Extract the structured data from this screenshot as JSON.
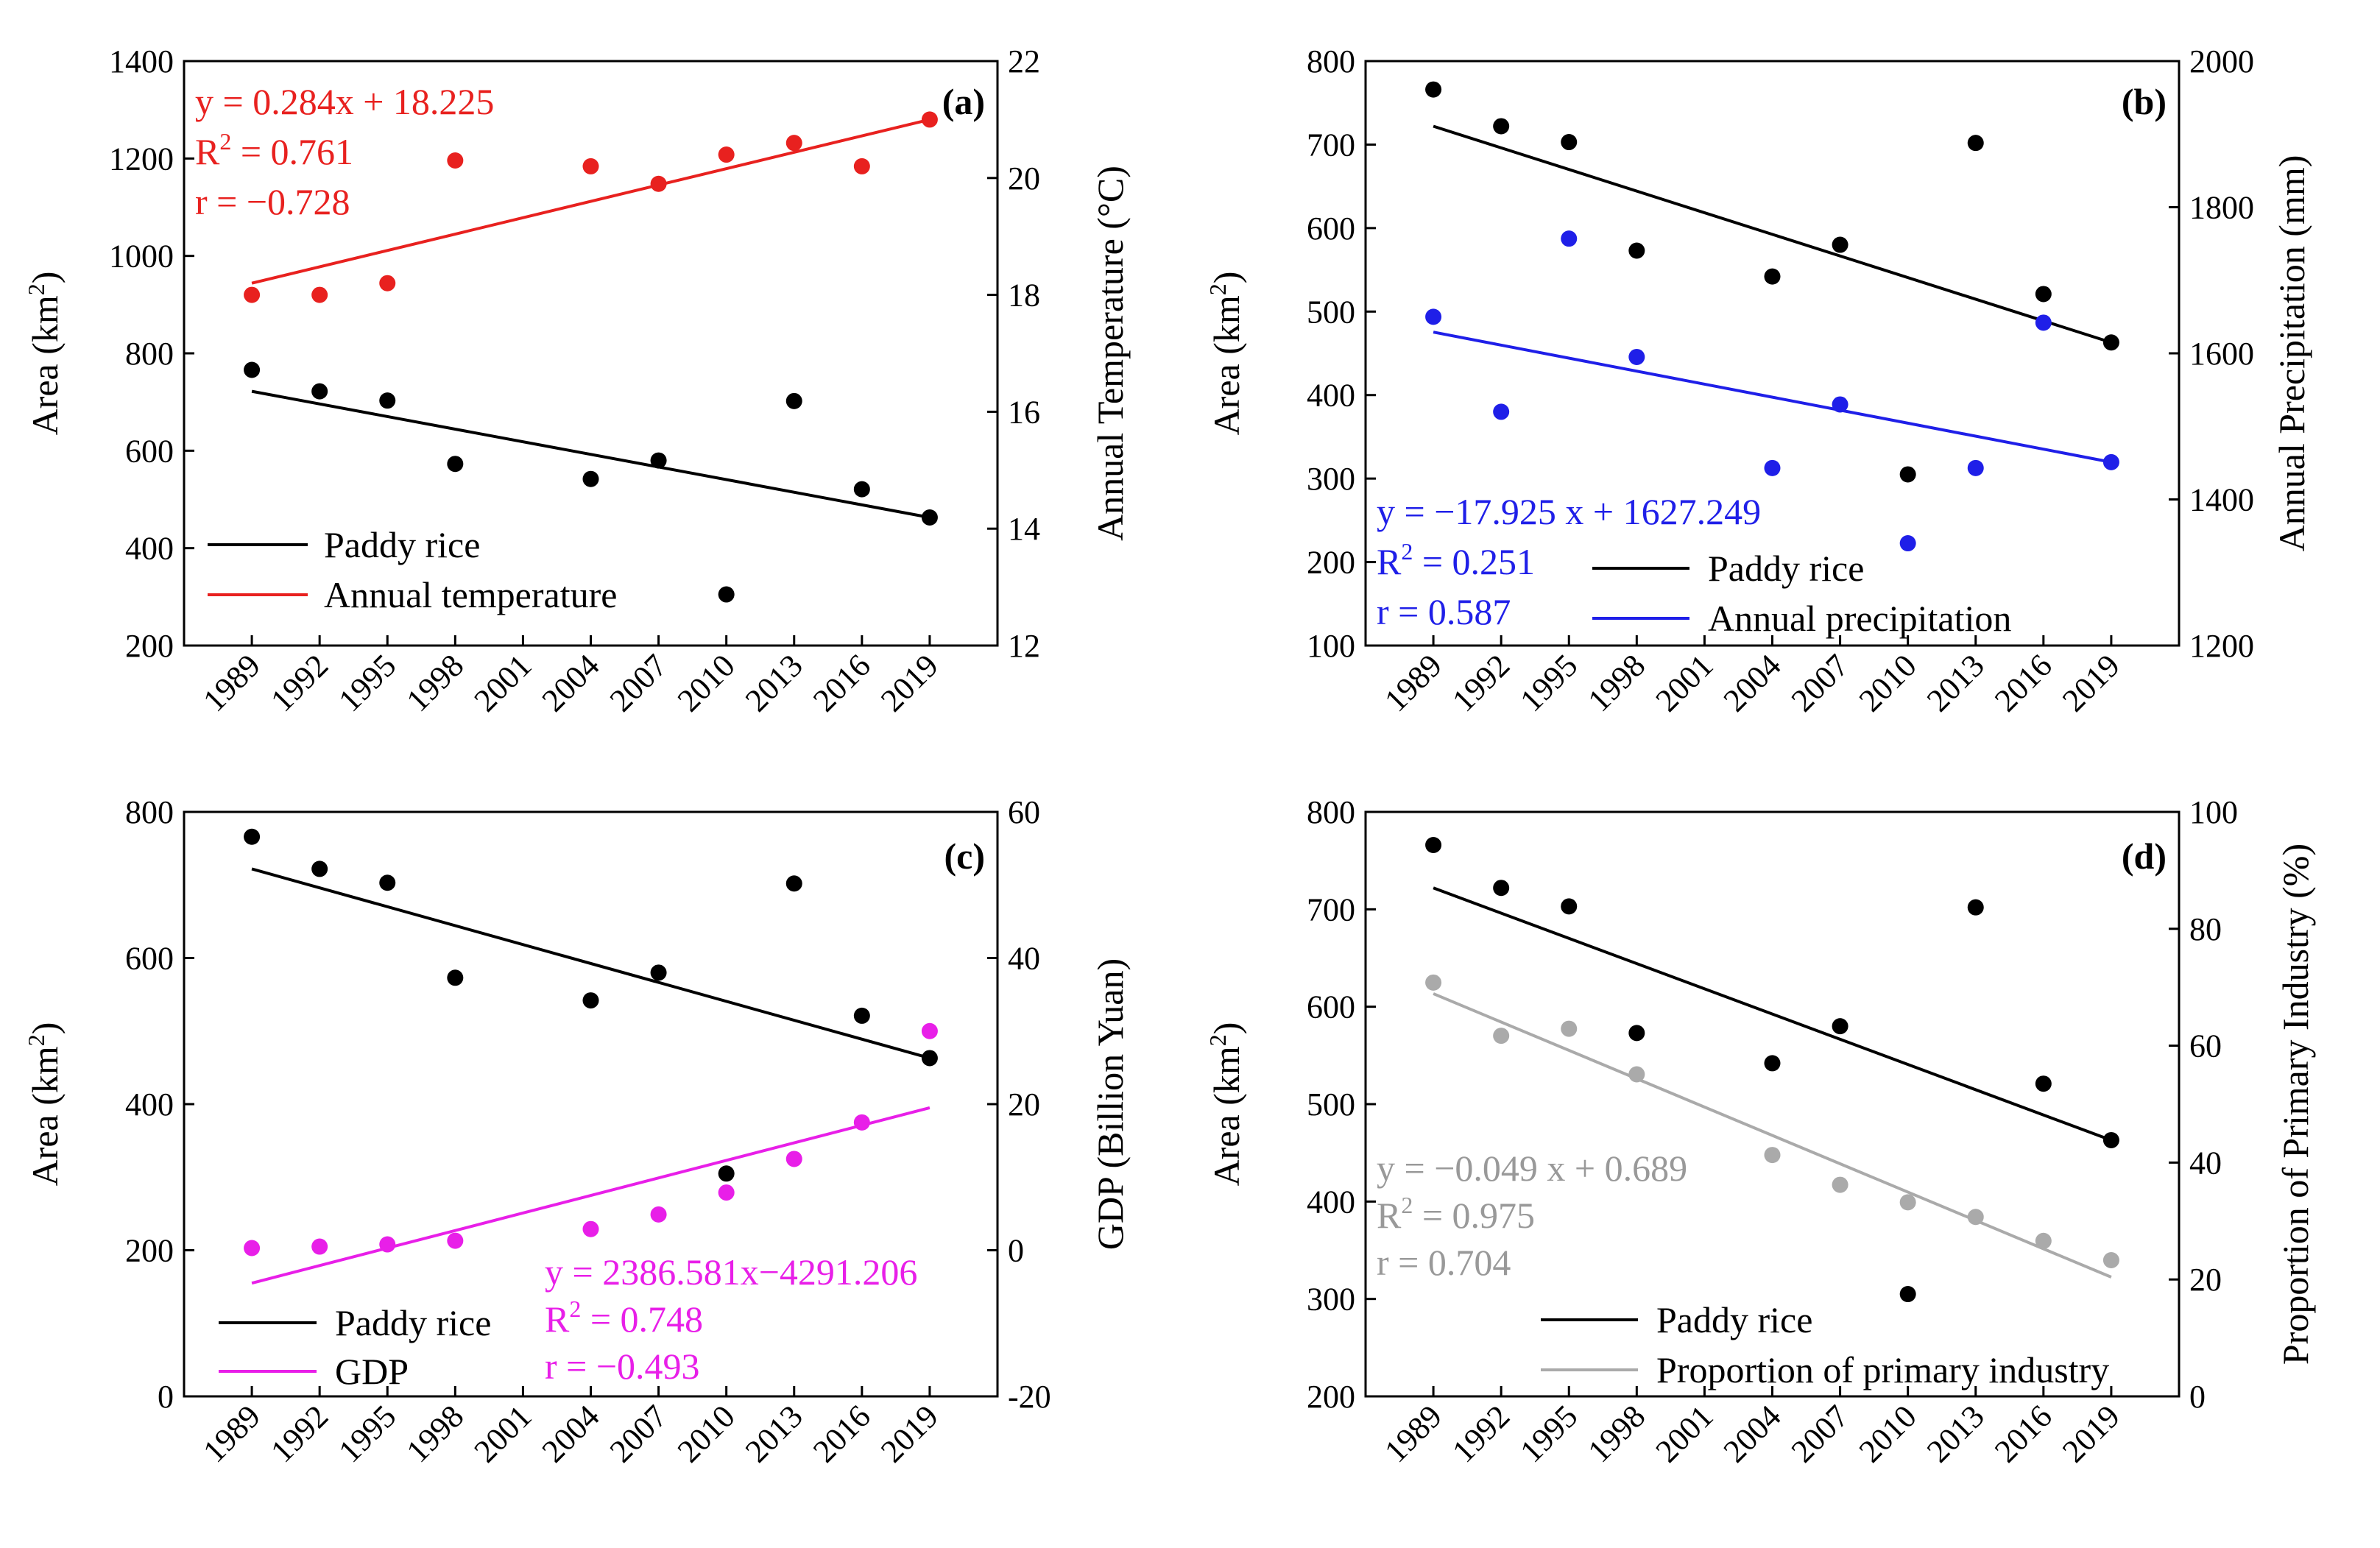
{
  "chart_data": [
    {
      "panel": "(a)",
      "type": "scatter",
      "x": [
        1989,
        1992,
        1995,
        1998,
        2004,
        2007,
        2010,
        2013,
        2016,
        2019
      ],
      "categories": [
        "1989",
        "1992",
        "1995",
        "1998",
        "2001",
        "2004",
        "2007",
        "2010",
        "2013",
        "2016",
        "2019"
      ],
      "ylabel": "Area (km²)",
      "ylabel_main": "Area (km",
      "ylabel_sup": "2",
      "ylabel_end": ")",
      "ylim": [
        200,
        1400
      ],
      "yticks": [
        200,
        400,
        600,
        800,
        1000,
        1200,
        1400
      ],
      "y2label": "Annual Temperature (°C)",
      "y2lim": [
        12,
        22
      ],
      "y2ticks": [
        12,
        14,
        16,
        18,
        20,
        22
      ],
      "series": [
        {
          "name": "Paddy rice",
          "axis": "left",
          "color": "#000000",
          "values": [
            766,
            722,
            703,
            573,
            542,
            580,
            305,
            702,
            521,
            463
          ],
          "fit": [
            722,
            463
          ]
        },
        {
          "name": "Annual temperature",
          "axis": "right",
          "color": "#e8211f",
          "values": [
            18.0,
            18.0,
            18.2,
            20.3,
            20.2,
            19.9,
            20.4,
            20.6,
            20.2,
            21.0
          ],
          "fit": [
            18.2,
            21.0
          ]
        }
      ],
      "annotation": {
        "color": "#e8211f",
        "eq": "y = 0.284x + 18.225",
        "r2_main": "R",
        "r2_sup": "2",
        "r2_rest": " = 0.761",
        "r": "r = −0.728"
      },
      "legend": [
        "Paddy rice",
        "Annual temperature"
      ]
    },
    {
      "panel": "(b)",
      "type": "scatter",
      "x": [
        1989,
        1992,
        1995,
        1998,
        2004,
        2007,
        2010,
        2013,
        2016,
        2019
      ],
      "categories": [
        "1989",
        "1992",
        "1995",
        "1998",
        "2001",
        "2004",
        "2007",
        "2010",
        "2013",
        "2016",
        "2019"
      ],
      "ylabel": "Area (km²)",
      "ylabel_main": "Area (km",
      "ylabel_sup": "2",
      "ylabel_end": ")",
      "ylim": [
        100,
        800
      ],
      "yticks": [
        100,
        200,
        300,
        400,
        500,
        600,
        700,
        800
      ],
      "y2label": "Annual Precipitation (mm)",
      "y2lim": [
        1200,
        2000
      ],
      "y2ticks": [
        1200,
        1400,
        1600,
        1800,
        2000
      ],
      "series": [
        {
          "name": "Paddy rice",
          "axis": "left",
          "color": "#000000",
          "values": [
            766,
            722,
            703,
            573,
            542,
            580,
            305,
            702,
            521,
            463
          ],
          "fit": [
            722,
            463
          ]
        },
        {
          "name": "Annual precipitation",
          "axis": "right",
          "color": "#1f1fe8",
          "values": [
            1650,
            1520,
            1757,
            1595,
            1443,
            1530,
            1340,
            1443,
            1642,
            1451
          ],
          "fit": [
            1629,
            1451
          ]
        }
      ],
      "annotation": {
        "color": "#1f1fe8",
        "eq": "y = −17.925 x + 1627.249",
        "r2_main": "R",
        "r2_sup": "2",
        "r2_rest": " = 0.251",
        "r": "r = 0.587"
      },
      "legend": [
        "Paddy rice",
        "Annual precipitation"
      ]
    },
    {
      "panel": "(c)",
      "type": "scatter",
      "x": [
        1989,
        1992,
        1995,
        1998,
        2004,
        2007,
        2010,
        2013,
        2016,
        2019
      ],
      "categories": [
        "1989",
        "1992",
        "1995",
        "1998",
        "2001",
        "2004",
        "2007",
        "2010",
        "2013",
        "2016",
        "2019"
      ],
      "ylabel": "Area (km²)",
      "ylabel_main": "Area (km",
      "ylabel_sup": "2",
      "ylabel_end": ")",
      "ylim": [
        0,
        800
      ],
      "yticks": [
        0,
        200,
        400,
        600,
        800
      ],
      "y2label": "GDP (Billion Yuan)",
      "y2lim": [
        -20,
        60
      ],
      "y2ticks": [
        -20,
        0,
        20,
        40,
        60
      ],
      "series": [
        {
          "name": "Paddy rice",
          "axis": "left",
          "color": "#000000",
          "values": [
            766,
            722,
            703,
            573,
            542,
            580,
            305,
            702,
            521,
            463
          ],
          "fit": [
            722,
            463
          ]
        },
        {
          "name": "GDP",
          "axis": "right",
          "color": "#e81fe8",
          "values": [
            0.3,
            0.5,
            0.8,
            1.3,
            2.9,
            4.9,
            7.9,
            12.5,
            17.5,
            30.0
          ],
          "fit": [
            -4.5,
            19.5
          ]
        }
      ],
      "annotation": {
        "color": "#e81fe8",
        "eq": "y = 2386.581x−4291.206",
        "r2_main": "R",
        "r2_sup": "2",
        "r2_rest": " = 0.748",
        "r": "r = −0.493"
      },
      "legend": [
        "Paddy rice",
        "GDP"
      ]
    },
    {
      "panel": "(d)",
      "type": "scatter",
      "x": [
        1989,
        1992,
        1995,
        1998,
        2004,
        2007,
        2010,
        2013,
        2016,
        2019
      ],
      "categories": [
        "1989",
        "1992",
        "1995",
        "1998",
        "2001",
        "2004",
        "2007",
        "2010",
        "2013",
        "2016",
        "2019"
      ],
      "ylabel": "Area (km²)",
      "ylabel_main": "Area (km",
      "ylabel_sup": "2",
      "ylabel_end": ")",
      "ylim": [
        200,
        800
      ],
      "yticks": [
        200,
        300,
        400,
        500,
        600,
        700,
        800
      ],
      "y2label": "Proportion of Primary Industry (%)",
      "y2lim": [
        0,
        100
      ],
      "y2ticks": [
        0,
        20,
        40,
        60,
        80,
        100
      ],
      "series": [
        {
          "name": "Paddy rice",
          "axis": "left",
          "color": "#000000",
          "values": [
            766,
            722,
            703,
            573,
            542,
            580,
            305,
            702,
            521,
            463
          ],
          "fit": [
            722,
            463
          ]
        },
        {
          "name": "Proportion of primary industry",
          "axis": "right",
          "color": "#aaaaaa",
          "values": [
            70.8,
            61.7,
            62.9,
            55.1,
            41.3,
            36.2,
            33.2,
            30.7,
            26.6,
            23.3
          ],
          "fit": [
            68.9,
            20.4
          ]
        }
      ],
      "annotation": {
        "color": "#999999",
        "eq": "y = −0.049 x + 0.689",
        "r2_main": "R",
        "r2_sup": "2",
        "r2_rest": " = 0.975",
        "r": "r = 0.704"
      },
      "legend": [
        "Paddy rice",
        "Proportion of primary industry"
      ]
    }
  ]
}
